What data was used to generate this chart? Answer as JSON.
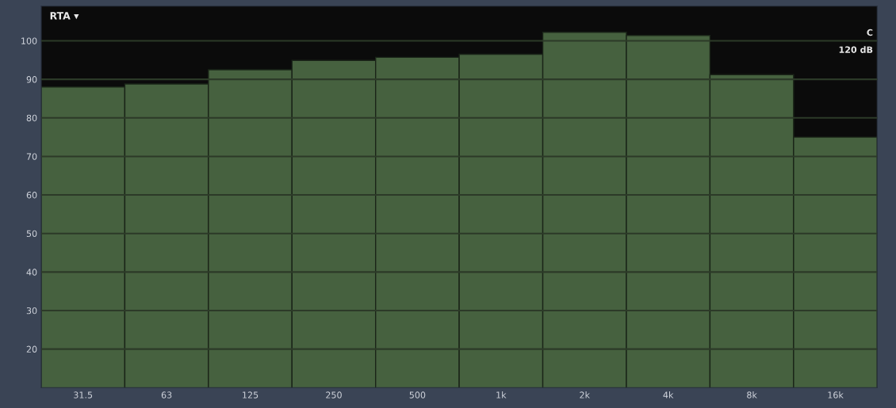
{
  "chart_data": {
    "type": "bar",
    "title": "RTA ▾",
    "categories": [
      "31.5",
      "63",
      "125",
      "250",
      "500",
      "1k",
      "2k",
      "4k",
      "8k",
      "16k"
    ],
    "values": [
      88.0,
      88.8,
      92.5,
      94.9,
      95.7,
      96.5,
      102.2,
      101.4,
      91.2,
      75.0
    ],
    "color": "#46613f",
    "ylim": [
      10,
      109
    ],
    "yticks": [
      20,
      30,
      40,
      50,
      60,
      70,
      80,
      90,
      100
    ],
    "grid": "y",
    "annotations": [
      "C",
      "120 dB"
    ]
  }
}
